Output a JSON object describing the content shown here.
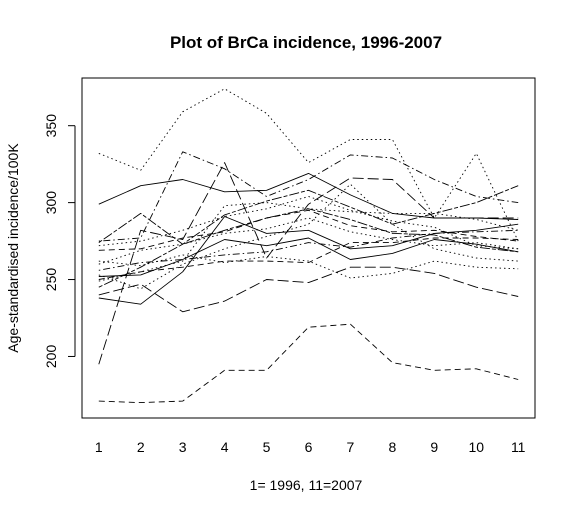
{
  "chart_data": {
    "type": "line",
    "title": "Plot of BrCa incidence, 1996-2007",
    "xlabel": "1= 1996, 11=2007",
    "ylabel": "Age-standardised incidence/100K",
    "x": [
      1,
      2,
      3,
      4,
      5,
      6,
      7,
      8,
      9,
      10,
      11
    ],
    "xlim": [
      0.6,
      11.4
    ],
    "ylim": [
      160,
      381
    ],
    "x_ticks": [
      "1",
      "2",
      "3",
      "4",
      "5",
      "6",
      "7",
      "8",
      "9",
      "10",
      "11"
    ],
    "y_ticks": [
      "200",
      "250",
      "300",
      "350"
    ],
    "grid": false,
    "legend": "none",
    "line_color": "#000000",
    "series": [
      {
        "style": "dotted",
        "values": [
          332,
          321,
          359,
          374,
          358,
          326,
          341,
          341,
          290,
          332,
          275
        ]
      },
      {
        "style": "solid",
        "values": [
          299,
          311,
          315,
          307,
          308,
          319,
          305,
          293,
          290,
          290,
          289
        ]
      },
      {
        "style": "dotdash",
        "values": [
          275,
          277,
          333,
          322,
          304,
          315,
          331,
          329,
          315,
          304,
          300
        ]
      },
      {
        "style": "longdash",
        "values": [
          195,
          282,
          276,
          326,
          264,
          299,
          316,
          315,
          290,
          290,
          290
        ]
      },
      {
        "style": "twodash",
        "values": [
          274,
          293,
          273,
          292,
          301,
          308,
          297,
          286,
          293,
          300,
          311
        ]
      },
      {
        "style": "dashed",
        "values": [
          171,
          170,
          171,
          191,
          191,
          219,
          221,
          196,
          191,
          192,
          185
        ]
      },
      {
        "style": "longdash",
        "values": [
          240,
          247,
          229,
          236,
          250,
          248,
          258,
          258,
          254,
          245,
          239
        ]
      },
      {
        "style": "solid",
        "values": [
          238,
          234,
          255,
          291,
          280,
          282,
          270,
          272,
          280,
          282,
          286
        ]
      },
      {
        "style": "solid",
        "values": [
          252,
          253,
          263,
          276,
          272,
          277,
          263,
          267,
          276,
          273,
          268
        ]
      },
      {
        "style": "dotted",
        "values": [
          262,
          259,
          266,
          261,
          265,
          262,
          251,
          254,
          262,
          258,
          257
        ]
      },
      {
        "style": "dashed",
        "values": [
          250,
          255,
          258,
          262,
          262,
          261,
          274,
          274,
          277,
          277,
          276
        ]
      },
      {
        "style": "dotdash",
        "values": [
          256,
          261,
          263,
          266,
          268,
          274,
          271,
          277,
          280,
          281,
          282
        ]
      },
      {
        "style": "dotted",
        "values": [
          260,
          269,
          273,
          280,
          283,
          290,
          281,
          276,
          272,
          274,
          270
        ]
      },
      {
        "style": "twodash",
        "values": [
          245,
          258,
          273,
          282,
          290,
          296,
          289,
          280,
          279,
          271,
          268
        ]
      },
      {
        "style": "dotted",
        "values": [
          272,
          275,
          282,
          291,
          296,
          304,
          295,
          288,
          284,
          272,
          270
        ]
      },
      {
        "style": "dashed",
        "values": [
          269,
          270,
          277,
          281,
          290,
          295,
          285,
          281,
          282,
          278,
          275
        ]
      },
      {
        "style": "dotted",
        "values": [
          253,
          244,
          260,
          270,
          278,
          286,
          312,
          286,
          270,
          264,
          262
        ]
      },
      {
        "style": "dotted",
        "values": [
          249,
          255,
          262,
          298,
          300,
          296,
          294,
          293,
          293,
          289,
          282
        ]
      }
    ]
  }
}
